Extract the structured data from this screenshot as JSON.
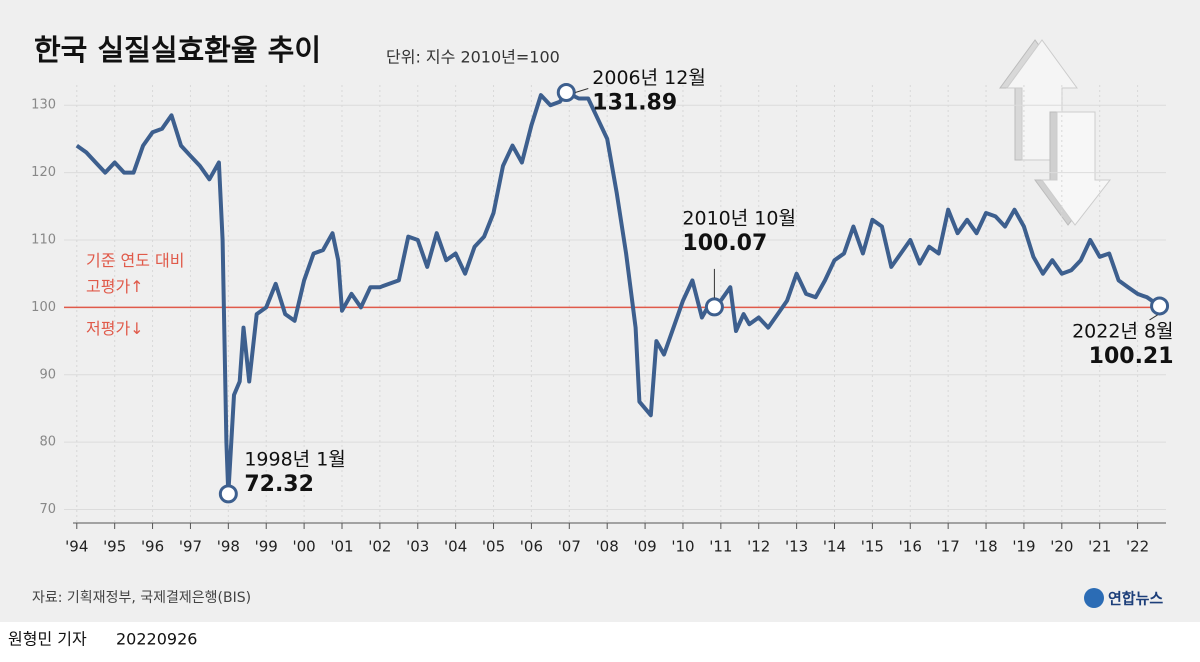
{
  "chart_data": {
    "type": "line",
    "title": "한국 실질실효환율 추이",
    "subtitle": "단위: 지수 2010년=100",
    "source": "자료: 기획재정부, 국제결제은행(BIS)",
    "logo": "연합뉴스",
    "byline": "원형민 기자",
    "date": "20220926",
    "x": [
      1994.0,
      1994.25,
      1994.5,
      1994.75,
      1995.0,
      1995.25,
      1995.5,
      1995.75,
      1996.0,
      1996.25,
      1996.5,
      1996.75,
      1997.0,
      1997.25,
      1997.5,
      1997.75,
      1997.85,
      1997.95,
      1998.0,
      1998.15,
      1998.3,
      1998.4,
      1998.55,
      1998.75,
      1999.0,
      1999.25,
      1999.5,
      1999.75,
      2000.0,
      2000.25,
      2000.5,
      2000.75,
      2000.9,
      2001.0,
      2001.25,
      2001.5,
      2001.75,
      2002.0,
      2002.25,
      2002.5,
      2002.75,
      2003.0,
      2003.25,
      2003.5,
      2003.75,
      2004.0,
      2004.25,
      2004.5,
      2004.75,
      2005.0,
      2005.25,
      2005.5,
      2005.75,
      2006.0,
      2006.25,
      2006.5,
      2006.75,
      2006.92,
      2007.25,
      2007.5,
      2007.75,
      2008.0,
      2008.25,
      2008.5,
      2008.75,
      2008.85,
      2009.0,
      2009.15,
      2009.3,
      2009.5,
      2009.75,
      2010.0,
      2010.25,
      2010.5,
      2010.75,
      2010.83,
      2011.0,
      2011.25,
      2011.4,
      2011.6,
      2011.75,
      2012.0,
      2012.25,
      2012.5,
      2012.75,
      2013.0,
      2013.25,
      2013.5,
      2013.75,
      2014.0,
      2014.25,
      2014.5,
      2014.75,
      2015.0,
      2015.25,
      2015.5,
      2015.75,
      2016.0,
      2016.25,
      2016.5,
      2016.75,
      2017.0,
      2017.25,
      2017.5,
      2017.75,
      2018.0,
      2018.25,
      2018.5,
      2018.75,
      2019.0,
      2019.25,
      2019.5,
      2019.75,
      2020.0,
      2020.25,
      2020.5,
      2020.75,
      2021.0,
      2021.25,
      2021.5,
      2021.75,
      2022.0,
      2022.25,
      2022.58
    ],
    "series": [
      {
        "color": "#3d5f8e",
        "values": [
          124,
          123,
          121.5,
          120,
          121.5,
          120,
          120,
          124,
          126,
          126.5,
          128.5,
          124,
          122.5,
          121,
          119,
          121.5,
          110,
          80,
          72.32,
          87,
          89,
          97,
          89,
          99,
          100,
          103.5,
          99,
          98,
          104,
          108,
          108.5,
          111,
          107,
          99.5,
          102,
          100,
          103,
          103,
          103.5,
          104,
          110.5,
          110,
          106,
          111,
          107,
          108,
          105,
          109,
          110.5,
          114,
          121,
          124,
          121.5,
          127,
          131.5,
          130,
          130.5,
          131.89,
          131,
          131,
          128,
          125,
          117,
          108,
          97,
          86,
          85,
          84,
          95,
          93,
          97,
          101,
          104,
          98.5,
          101,
          100.07,
          101,
          103,
          96.5,
          99,
          97.5,
          98.5,
          97,
          99,
          101,
          105,
          102,
          101.5,
          104,
          107,
          108,
          112,
          108,
          113,
          112,
          106,
          108,
          110,
          106.5,
          109,
          108,
          114.5,
          111,
          113,
          111,
          114,
          113.5,
          112,
          114.5,
          112,
          107.5,
          105,
          107,
          105,
          105.5,
          107,
          110,
          107.5,
          108,
          104,
          103,
          102,
          101.5,
          100.21
        ]
      }
    ],
    "xlim": [
      1993.9,
      2022.75
    ],
    "xticks": [
      {
        "value": 1994,
        "label": "'94"
      },
      {
        "value": 1995,
        "label": "'95"
      },
      {
        "value": 1996,
        "label": "'96"
      },
      {
        "value": 1997,
        "label": "'97"
      },
      {
        "value": 1998,
        "label": "'98"
      },
      {
        "value": 1999,
        "label": "'99"
      },
      {
        "value": 2000,
        "label": "'00"
      },
      {
        "value": 2001,
        "label": "'01"
      },
      {
        "value": 2002,
        "label": "'02"
      },
      {
        "value": 2003,
        "label": "'03"
      },
      {
        "value": 2004,
        "label": "'04"
      },
      {
        "value": 2005,
        "label": "'05"
      },
      {
        "value": 2006,
        "label": "'06"
      },
      {
        "value": 2007,
        "label": "'07"
      },
      {
        "value": 2008,
        "label": "'08"
      },
      {
        "value": 2009,
        "label": "'09"
      },
      {
        "value": 2010,
        "label": "'10"
      },
      {
        "value": 2011,
        "label": "'11"
      },
      {
        "value": 2012,
        "label": "'12"
      },
      {
        "value": 2013,
        "label": "'13"
      },
      {
        "value": 2014,
        "label": "'14"
      },
      {
        "value": 2015,
        "label": "'15"
      },
      {
        "value": 2016,
        "label": "'16"
      },
      {
        "value": 2017,
        "label": "'17"
      },
      {
        "value": 2018,
        "label": "'18"
      },
      {
        "value": 2019,
        "label": "'19"
      },
      {
        "value": 2020,
        "label": "'20"
      },
      {
        "value": 2021,
        "label": "'21"
      },
      {
        "value": 2022,
        "label": "'22"
      }
    ],
    "ylim": [
      68,
      133
    ],
    "yticks": [
      70,
      80,
      90,
      100,
      110,
      120,
      130
    ],
    "grid": true,
    "reference_line": {
      "value": 100,
      "color": "#e05a4a",
      "labels": [
        "기준 연도 대비",
        "고평가↑",
        "저평가↓"
      ]
    },
    "annotations": [
      {
        "text": "1998년 1월",
        "value": 72.32
      },
      {
        "text": "2006년 12월",
        "value": 131.89
      },
      {
        "text": "2010년 10월",
        "value": 100.07
      },
      {
        "text": "2022년 8월",
        "value": 100.21
      }
    ]
  }
}
